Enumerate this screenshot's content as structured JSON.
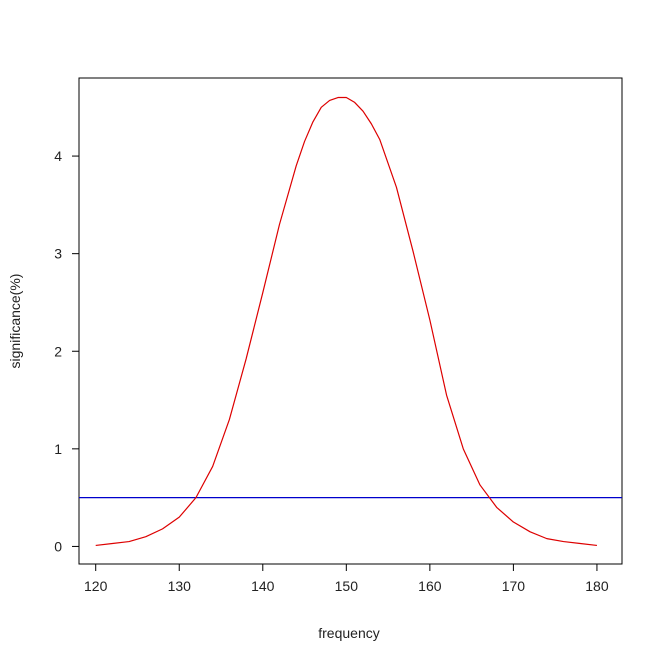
{
  "chart_data": {
    "type": "line",
    "title": "",
    "xlabel": "frequency",
    "ylabel": "significance(%)",
    "xlim": [
      118,
      183
    ],
    "ylim": [
      -0.18,
      4.8
    ],
    "x_ticks": [
      120,
      130,
      140,
      150,
      160,
      170,
      180
    ],
    "y_ticks": [
      0,
      1,
      2,
      3,
      4
    ],
    "grid": false,
    "legend": "none",
    "series": [
      {
        "color": "#dd0000",
        "x": [
          120,
          122,
          124,
          126,
          128,
          130,
          132,
          134,
          136,
          138,
          140,
          142,
          144,
          145,
          146,
          147,
          148,
          149,
          150,
          151,
          152,
          153,
          154,
          156,
          158,
          160,
          162,
          164,
          166,
          168,
          170,
          172,
          174,
          176,
          178,
          180
        ],
        "y": [
          0.01,
          0.03,
          0.05,
          0.1,
          0.18,
          0.3,
          0.5,
          0.82,
          1.3,
          1.92,
          2.6,
          3.3,
          3.9,
          4.15,
          4.35,
          4.5,
          4.57,
          4.6,
          4.6,
          4.55,
          4.46,
          4.33,
          4.17,
          3.68,
          3.02,
          2.32,
          1.55,
          1.0,
          0.63,
          0.4,
          0.25,
          0.15,
          0.08,
          0.05,
          0.03,
          0.01
        ]
      }
    ],
    "hlines": [
      {
        "y": 0.5,
        "color": "#0000cc"
      }
    ]
  }
}
